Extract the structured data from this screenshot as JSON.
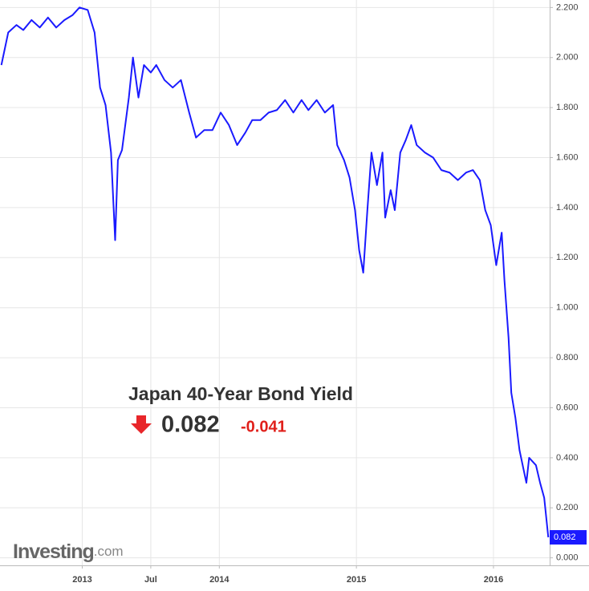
{
  "chart_data": {
    "type": "line",
    "title": "Japan 40-Year Bond Yield",
    "last_value": 0.082,
    "change": -0.041,
    "logo": {
      "name": "Investing",
      "suffix": ".com"
    },
    "x": [
      2012.41,
      2012.46,
      2012.52,
      2012.57,
      2012.63,
      2012.69,
      2012.75,
      2012.81,
      2012.87,
      2012.93,
      2012.98,
      2013.04,
      2013.09,
      2013.13,
      2013.17,
      2013.21,
      2013.24,
      2013.26,
      2013.29,
      2013.34,
      2013.37,
      2013.41,
      2013.45,
      2013.5,
      2013.54,
      2013.6,
      2013.66,
      2013.72,
      2013.78,
      2013.83,
      2013.89,
      2013.95,
      2014.01,
      2014.07,
      2014.13,
      2014.19,
      2014.24,
      2014.3,
      2014.36,
      2014.42,
      2014.48,
      2014.54,
      2014.6,
      2014.65,
      2014.71,
      2014.77,
      2014.83,
      2014.86,
      2014.91,
      2014.95,
      2014.99,
      2015.02,
      2015.05,
      2015.08,
      2015.11,
      2015.15,
      2015.19,
      2015.21,
      2015.25,
      2015.28,
      2015.32,
      2015.36,
      2015.4,
      2015.44,
      2015.5,
      2015.56,
      2015.62,
      2015.68,
      2015.74,
      2015.8,
      2015.85,
      2015.9,
      2015.94,
      2015.98,
      2016.02,
      2016.06,
      2016.08,
      2016.11,
      2016.13,
      2016.16,
      2016.19,
      2016.24,
      2016.26,
      2016.31,
      2016.34,
      2016.37,
      2016.4
    ],
    "series": [
      {
        "name": "Japan 40-Year Bond Yield",
        "color": "#1a1aff",
        "values": [
          1.97,
          2.1,
          2.13,
          2.11,
          2.15,
          2.12,
          2.16,
          2.12,
          2.15,
          2.17,
          2.2,
          2.19,
          2.1,
          1.88,
          1.81,
          1.62,
          1.27,
          1.59,
          1.63,
          1.84,
          2.0,
          1.84,
          1.97,
          1.94,
          1.97,
          1.91,
          1.88,
          1.91,
          1.78,
          1.68,
          1.71,
          1.71,
          1.78,
          1.73,
          1.65,
          1.7,
          1.75,
          1.75,
          1.78,
          1.79,
          1.83,
          1.78,
          1.83,
          1.79,
          1.83,
          1.78,
          1.81,
          1.65,
          1.59,
          1.52,
          1.39,
          1.23,
          1.14,
          1.39,
          1.62,
          1.49,
          1.62,
          1.36,
          1.47,
          1.39,
          1.62,
          1.67,
          1.73,
          1.65,
          1.62,
          1.6,
          1.55,
          1.54,
          1.51,
          1.54,
          1.55,
          1.51,
          1.39,
          1.33,
          1.17,
          1.3,
          1.11,
          0.88,
          0.66,
          0.56,
          0.43,
          0.3,
          0.4,
          0.37,
          0.3,
          0.24,
          0.082
        ]
      }
    ],
    "xlim": [
      2012.4,
      2016.41
    ],
    "xticks": [
      2013,
      {
        "value": 2013.5,
        "label": "Jul"
      },
      2014,
      2015,
      2016
    ],
    "ylim": [
      -0.03,
      2.23
    ],
    "yticks": [
      {
        "value": 0,
        "label": "0.000"
      },
      {
        "value": 0.2,
        "label": "0.200"
      },
      {
        "value": 0.4,
        "label": "0.400"
      },
      {
        "value": 0.6,
        "label": "0.600"
      },
      {
        "value": 0.8,
        "label": "0.800"
      },
      {
        "value": 1,
        "label": "1.000"
      },
      {
        "value": 1.2,
        "label": "1.200"
      },
      {
        "value": 1.4,
        "label": "1.400"
      },
      {
        "value": 1.6,
        "label": "1.600"
      },
      {
        "value": 1.8,
        "label": "1.800"
      },
      {
        "value": 2,
        "label": "2.000"
      },
      {
        "value": 2.2,
        "label": "2.200"
      }
    ],
    "grid": true
  }
}
